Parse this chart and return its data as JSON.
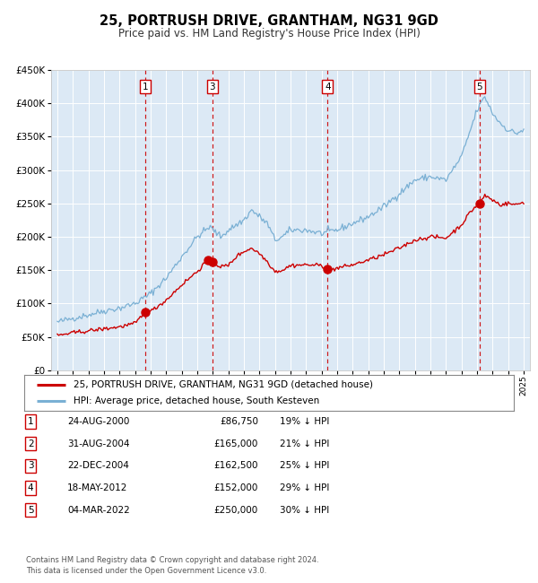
{
  "title": "25, PORTRUSH DRIVE, GRANTHAM, NG31 9GD",
  "subtitle": "Price paid vs. HM Land Registry's House Price Index (HPI)",
  "legend_line1": "25, PORTRUSH DRIVE, GRANTHAM, NG31 9GD (detached house)",
  "legend_line2": "HPI: Average price, detached house, South Kesteven",
  "footer1": "Contains HM Land Registry data © Crown copyright and database right 2024.",
  "footer2": "This data is licensed under the Open Government Licence v3.0.",
  "transactions": [
    {
      "label": "1",
      "date": "2000-08-24",
      "price": 86750,
      "x_year": 2000.65
    },
    {
      "label": "2",
      "date": "2004-08-31",
      "price": 165000,
      "x_year": 2004.67
    },
    {
      "label": "3",
      "date": "2004-12-22",
      "price": 162500,
      "x_year": 2004.97
    },
    {
      "label": "4",
      "date": "2012-05-18",
      "price": 152000,
      "x_year": 2012.38
    },
    {
      "label": "5",
      "date": "2022-03-04",
      "price": 250000,
      "x_year": 2022.17
    }
  ],
  "table_rows": [
    {
      "num": "1",
      "date": "24-AUG-2000",
      "price": "£86,750",
      "hpi": "19% ↓ HPI"
    },
    {
      "num": "2",
      "date": "31-AUG-2004",
      "price": "£165,000",
      "hpi": "21% ↓ HPI"
    },
    {
      "num": "3",
      "date": "22-DEC-2004",
      "price": "£162,500",
      "hpi": "25% ↓ HPI"
    },
    {
      "num": "4",
      "date": "18-MAY-2012",
      "price": "£152,000",
      "hpi": "29% ↓ HPI"
    },
    {
      "num": "5",
      "date": "04-MAR-2022",
      "price": "£250,000",
      "hpi": "30% ↓ HPI"
    }
  ],
  "vline_labels": [
    "1",
    "3",
    "4",
    "5"
  ],
  "vline_years": [
    2000.65,
    2004.97,
    2012.38,
    2022.17
  ],
  "ylim": [
    0,
    450000
  ],
  "xlim_start": 1994.6,
  "xlim_end": 2025.4,
  "bg_color": "#dce9f5",
  "red_line_color": "#cc0000",
  "blue_line_color": "#7ab0d4",
  "marker_color": "#cc0000",
  "vline_color": "#cc0000",
  "grid_color": "#ffffff",
  "box_color": "#cc0000",
  "hpi_anchors_t": [
    1995.0,
    1996.0,
    1997.0,
    1998.0,
    1999.0,
    2000.0,
    2001.0,
    2002.0,
    2003.0,
    2004.0,
    2004.8,
    2005.5,
    2006.0,
    2007.0,
    2007.5,
    2008.5,
    2009.0,
    2009.5,
    2010.0,
    2011.0,
    2012.0,
    2013.0,
    2014.0,
    2015.0,
    2016.0,
    2017.0,
    2018.0,
    2019.0,
    2020.0,
    2021.0,
    2021.5,
    2022.0,
    2022.5,
    2023.0,
    2023.5,
    2024.0,
    2024.5,
    2025.0
  ],
  "hpi_anchors_v": [
    72000,
    78000,
    83000,
    89000,
    93000,
    100000,
    115000,
    138000,
    170000,
    200000,
    215000,
    200000,
    210000,
    225000,
    240000,
    220000,
    195000,
    200000,
    210000,
    210000,
    205000,
    210000,
    220000,
    230000,
    245000,
    265000,
    285000,
    290000,
    285000,
    320000,
    355000,
    390000,
    410000,
    385000,
    370000,
    360000,
    355000,
    360000
  ],
  "red_anchors_t": [
    1995.0,
    1996.0,
    1997.0,
    1998.0,
    1999.0,
    2000.0,
    2000.65,
    2001.0,
    2002.0,
    2003.0,
    2004.0,
    2004.67,
    2004.97,
    2005.5,
    2006.0,
    2006.5,
    2007.0,
    2007.5,
    2008.0,
    2008.5,
    2009.0,
    2009.5,
    2010.0,
    2011.0,
    2012.0,
    2012.38,
    2012.5,
    2013.0,
    2014.0,
    2015.0,
    2016.0,
    2017.0,
    2018.0,
    2019.0,
    2020.0,
    2021.0,
    2021.5,
    2022.0,
    2022.17,
    2022.5,
    2023.0,
    2023.5,
    2024.0,
    2024.5,
    2025.0
  ],
  "red_anchors_v": [
    52000,
    56000,
    59000,
    62000,
    65000,
    70000,
    86750,
    88000,
    105000,
    128000,
    148000,
    165000,
    162500,
    155000,
    157000,
    170000,
    178000,
    183000,
    175000,
    163000,
    148000,
    150000,
    157000,
    158000,
    157000,
    152000,
    150000,
    153000,
    158000,
    165000,
    173000,
    183000,
    195000,
    200000,
    198000,
    218000,
    235000,
    248000,
    250000,
    262000,
    255000,
    248000,
    250000,
    248000,
    252000
  ]
}
